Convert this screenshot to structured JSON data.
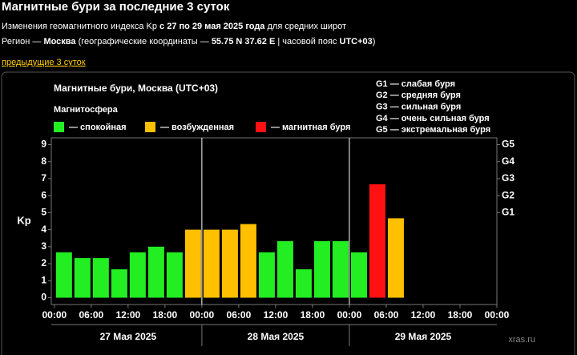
{
  "header": {
    "title": "Магнитные бури за последние 3 суток",
    "subtitle": [
      "Изменения геомагнитного индекса Kp ",
      "с 27 по 29 мая 2025 года",
      " для средних широт"
    ],
    "region": [
      "Регион — ",
      "Москва",
      " (географические координаты — ",
      "55.75 N 37.62 E",
      " | часовой пояс ",
      "UTC+03",
      ")"
    ],
    "link": "предыдущие 3 суток"
  },
  "chart_data": {
    "type": "bar",
    "title": "Магнитные бури, Москва (UTC+03)",
    "legend_title": "Магнитосфера",
    "legend": [
      {
        "label": "— спокойная",
        "color": "#22ee22"
      },
      {
        "label": "— возбужденная",
        "color": "#ffc000"
      },
      {
        "label": "— магнитная буря",
        "color": "#ff1111"
      }
    ],
    "storm_scale": [
      "G1 — слабая буря",
      "G2 — средняя буря",
      "G3 — сильная буря",
      "G4 — очень сильная буря",
      "G5 — экстремальная буря"
    ],
    "ylabel": "Kp",
    "x": [
      0,
      3,
      6,
      9,
      12,
      15,
      18,
      21,
      24,
      27,
      30,
      33,
      36,
      39,
      42,
      45,
      48,
      51,
      54,
      57,
      60,
      63,
      66,
      69
    ],
    "values": [
      2.67,
      2.33,
      2.33,
      1.67,
      2.67,
      3.0,
      2.67,
      4.0,
      4.0,
      4.0,
      4.33,
      2.67,
      3.33,
      1.67,
      3.33,
      3.33,
      2.67,
      6.67,
      4.67,
      null,
      null,
      null,
      null,
      null
    ],
    "colors": [
      "#22ee22",
      "#22ee22",
      "#22ee22",
      "#22ee22",
      "#22ee22",
      "#22ee22",
      "#22ee22",
      "#ffc000",
      "#ffc000",
      "#ffc000",
      "#ffc000",
      "#22ee22",
      "#22ee22",
      "#22ee22",
      "#22ee22",
      "#22ee22",
      "#22ee22",
      "#ff1111",
      "#ffc000",
      null,
      null,
      null,
      null,
      null
    ],
    "xlim": [
      -0.5,
      72
    ],
    "ylim": [
      -0.4,
      9.4
    ],
    "y2lim": [
      -0.4,
      9.4
    ],
    "xticks": [
      {
        "value": 0,
        "label": "00:00"
      },
      {
        "value": 6,
        "label": "06:00"
      },
      {
        "value": 12,
        "label": "12:00"
      },
      {
        "value": 18,
        "label": "18:00"
      },
      {
        "value": 24,
        "label": "00:00"
      },
      {
        "value": 30,
        "label": "06:00"
      },
      {
        "value": 36,
        "label": "12:00"
      },
      {
        "value": 42,
        "label": "18:00"
      },
      {
        "value": 48,
        "label": "00:00"
      },
      {
        "value": 54,
        "label": "06:00"
      },
      {
        "value": 60,
        "label": "12:00"
      },
      {
        "value": 66,
        "label": "18:00"
      },
      {
        "value": 72,
        "label": "00:00"
      }
    ],
    "yticks": [
      0,
      1,
      2,
      3,
      4,
      5,
      6,
      7,
      8,
      9
    ],
    "y2ticks": [
      {
        "value": 5,
        "label": "G1"
      },
      {
        "value": 6,
        "label": "G2"
      },
      {
        "value": 7,
        "label": "G3"
      },
      {
        "value": 8,
        "label": "G4"
      },
      {
        "value": 9,
        "label": "G5"
      }
    ],
    "days": [
      "27 Мая 2025",
      "28 Мая 2025",
      "29 Мая 2025"
    ],
    "watermark": "xras.ru"
  }
}
